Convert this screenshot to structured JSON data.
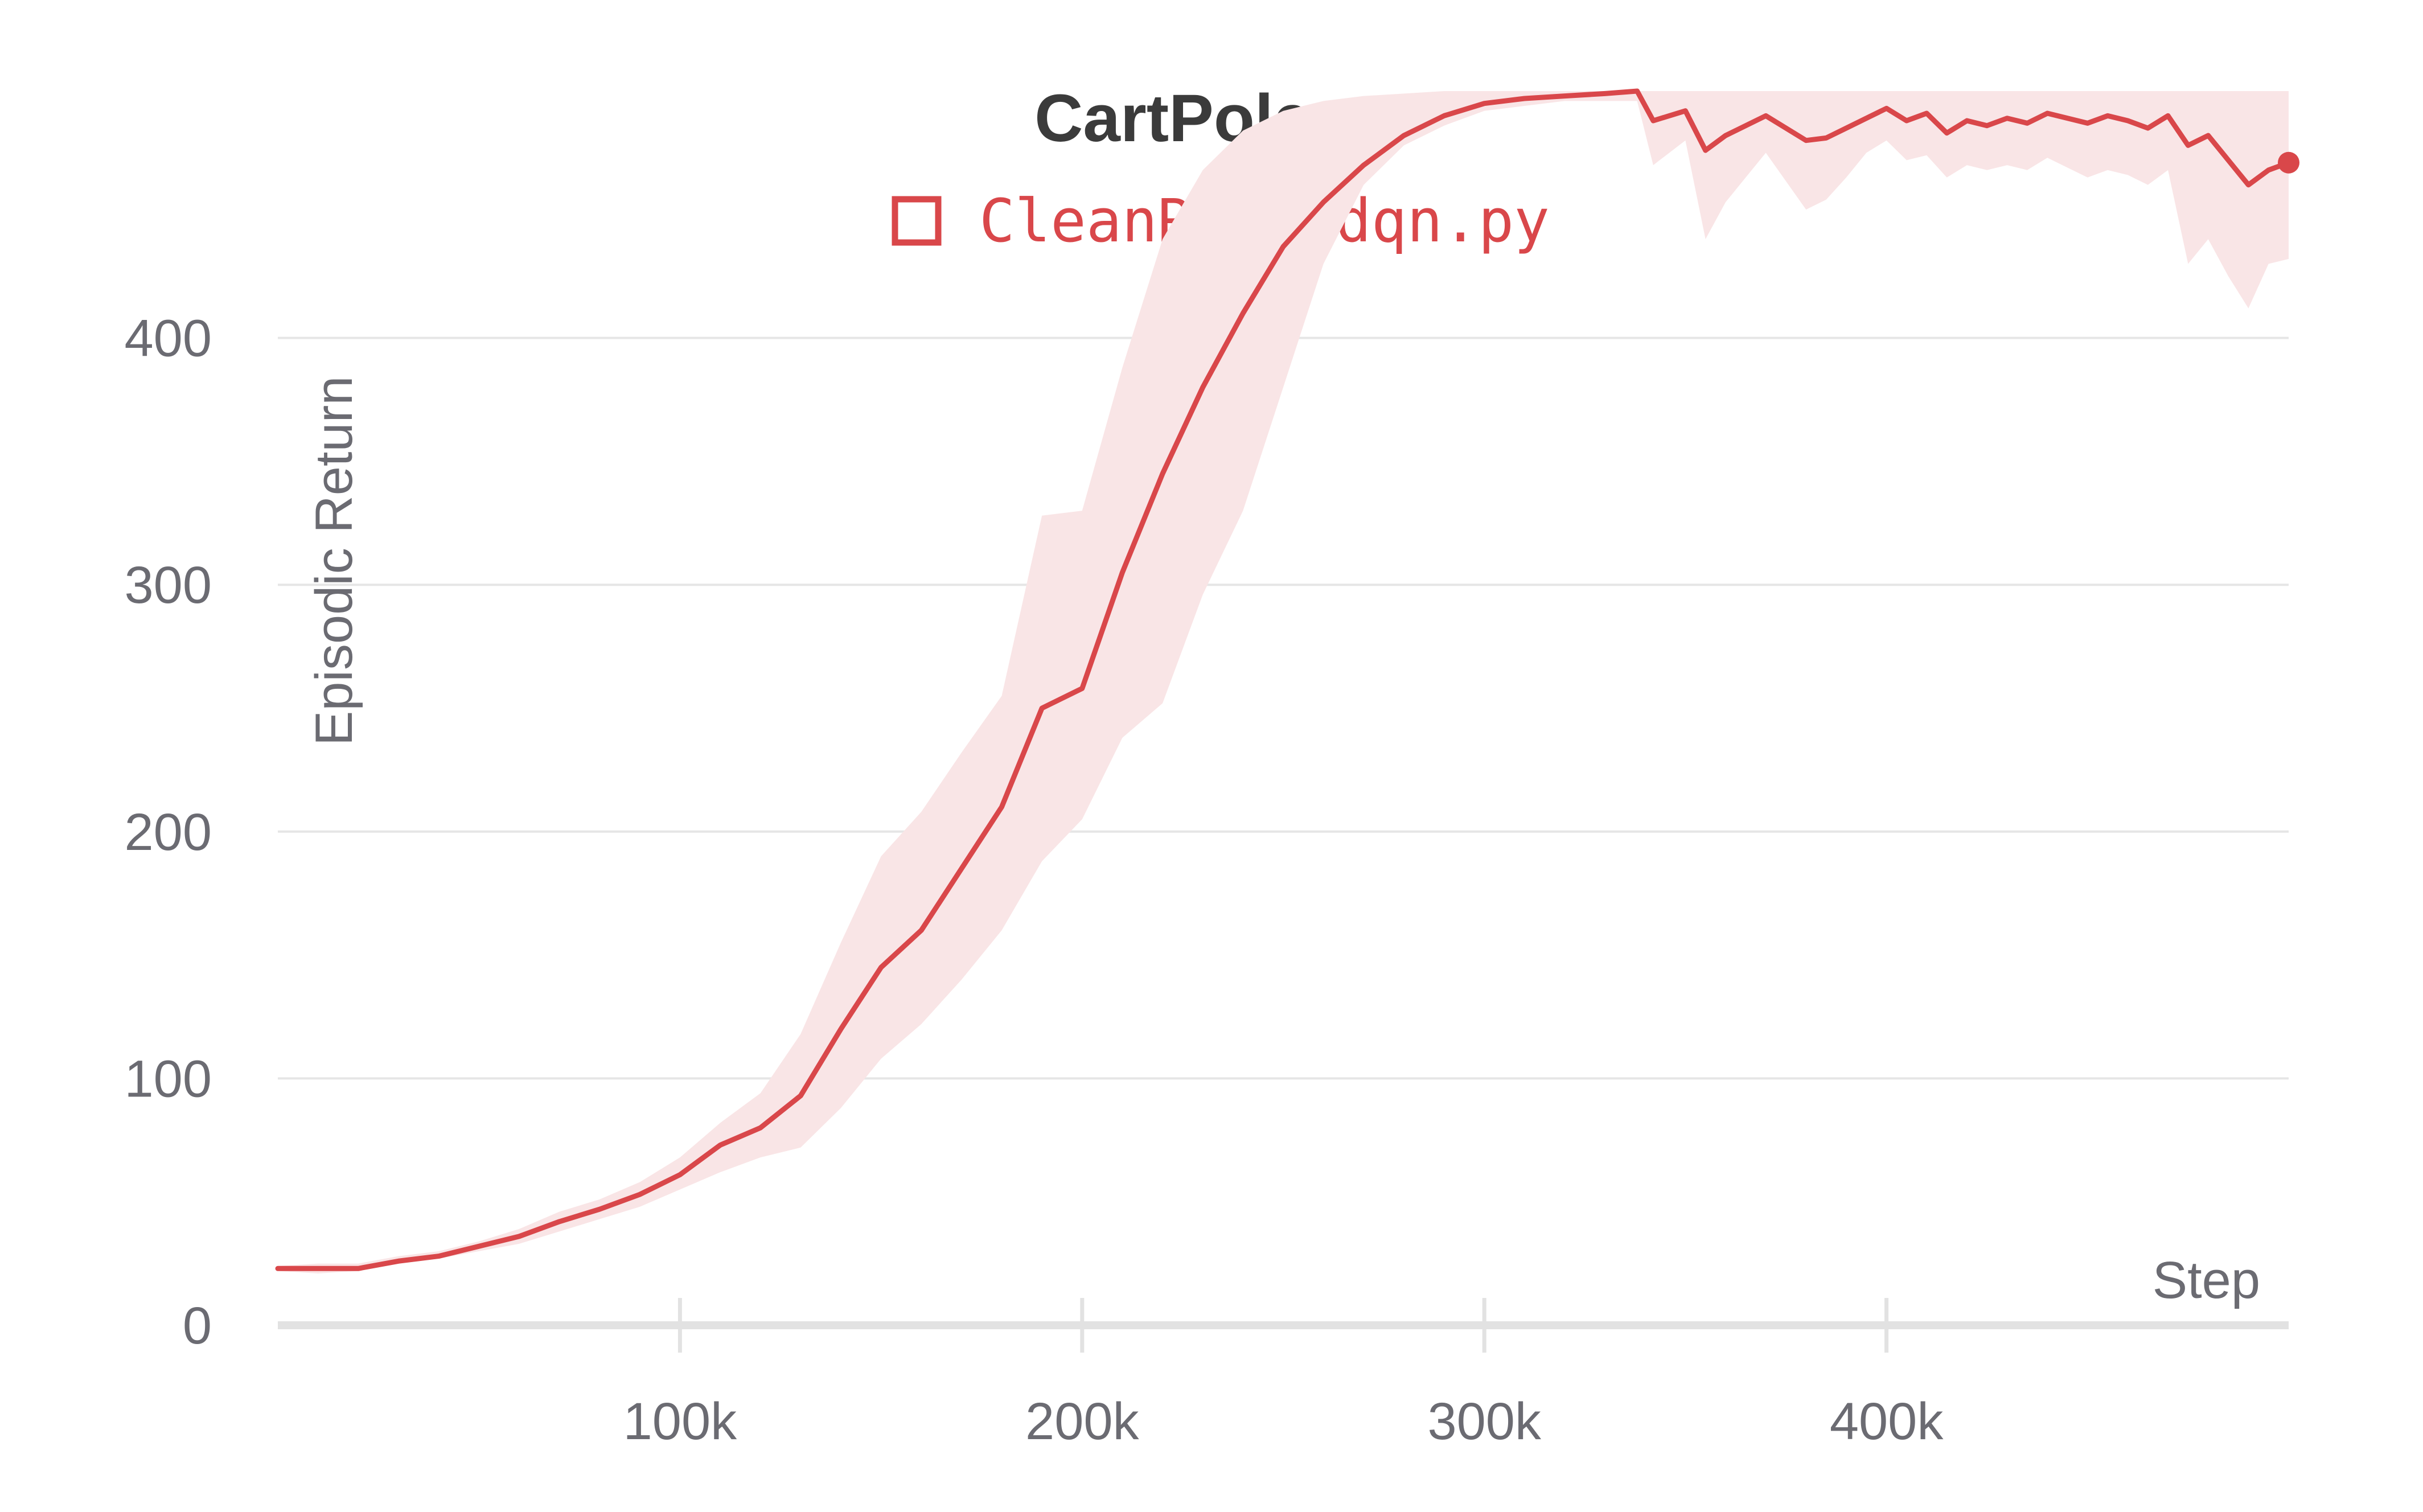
{
  "chart_data": {
    "type": "line",
    "title": "CartPole-v1",
    "xlabel": "Step",
    "ylabel": "Episodic Return",
    "xlim": [
      0,
      500000
    ],
    "ylim": [
      0,
      500
    ],
    "x_ticks": [
      100000,
      200000,
      300000,
      400000
    ],
    "x_tick_labels": [
      "100k",
      "200k",
      "300k",
      "400k"
    ],
    "y_ticks": [
      0,
      100,
      200,
      300,
      400
    ],
    "y_tick_labels": [
      "0",
      "100",
      "200",
      "300",
      "400"
    ],
    "grid": "horizontal",
    "legend_position": "top-center",
    "series": [
      {
        "name": "CleanRL's dqn.py",
        "color": "#d9474a",
        "band_color": "#f9e5e6",
        "x": [
          0,
          10000,
          20000,
          30000,
          40000,
          50000,
          60000,
          70000,
          80000,
          90000,
          100000,
          110000,
          120000,
          130000,
          140000,
          150000,
          160000,
          170000,
          180000,
          190000,
          200000,
          210000,
          220000,
          230000,
          240000,
          250000,
          260000,
          270000,
          280000,
          290000,
          300000,
          310000,
          320000,
          330000,
          338000,
          342000,
          350000,
          355000,
          360000,
          370000,
          380000,
          385000,
          390000,
          395000,
          400000,
          405000,
          410000,
          415000,
          420000,
          425000,
          430000,
          435000,
          440000,
          450000,
          455000,
          460000,
          465000,
          470000,
          475000,
          480000,
          485000,
          490000,
          495000,
          500000
        ],
        "values": [
          23,
          23,
          23,
          26,
          28,
          32,
          36,
          42,
          47,
          53,
          61,
          73,
          80,
          93,
          120,
          145,
          160,
          185,
          210,
          250,
          258,
          305,
          345,
          380,
          410,
          437,
          455,
          470,
          482,
          490,
          495,
          497,
          498,
          499,
          500,
          488,
          492,
          476,
          482,
          490,
          480,
          481,
          485,
          489,
          493,
          488,
          491,
          483,
          488,
          486,
          489,
          487,
          491,
          487,
          490,
          488,
          485,
          490,
          478,
          482,
          472,
          462,
          468,
          471
        ],
        "lower": [
          22,
          21,
          22,
          25,
          27,
          30,
          33,
          38,
          43,
          48,
          55,
          62,
          68,
          72,
          88,
          108,
          122,
          140,
          160,
          188,
          205,
          238,
          252,
          296,
          330,
          380,
          430,
          462,
          478,
          486,
          492,
          494,
          496,
          496,
          496,
          470,
          480,
          440,
          455,
          475,
          452,
          456,
          465,
          475,
          480,
          472,
          474,
          465,
          470,
          468,
          470,
          468,
          473,
          465,
          468,
          466,
          462,
          468,
          430,
          440,
          425,
          412,
          430,
          432
        ],
        "upper": [
          24,
          25,
          25,
          28,
          30,
          34,
          39,
          46,
          51,
          58,
          68,
          82,
          94,
          118,
          155,
          190,
          208,
          232,
          255,
          328,
          330,
          388,
          440,
          468,
          484,
          492,
          496,
          498,
          499,
          500,
          500,
          500,
          500,
          500,
          500,
          500,
          500,
          500,
          500,
          500,
          500,
          500,
          500,
          500,
          500,
          500,
          500,
          500,
          500,
          500,
          500,
          500,
          500,
          500,
          500,
          500,
          500,
          500,
          500,
          500,
          500,
          500,
          500,
          500
        ]
      }
    ]
  }
}
